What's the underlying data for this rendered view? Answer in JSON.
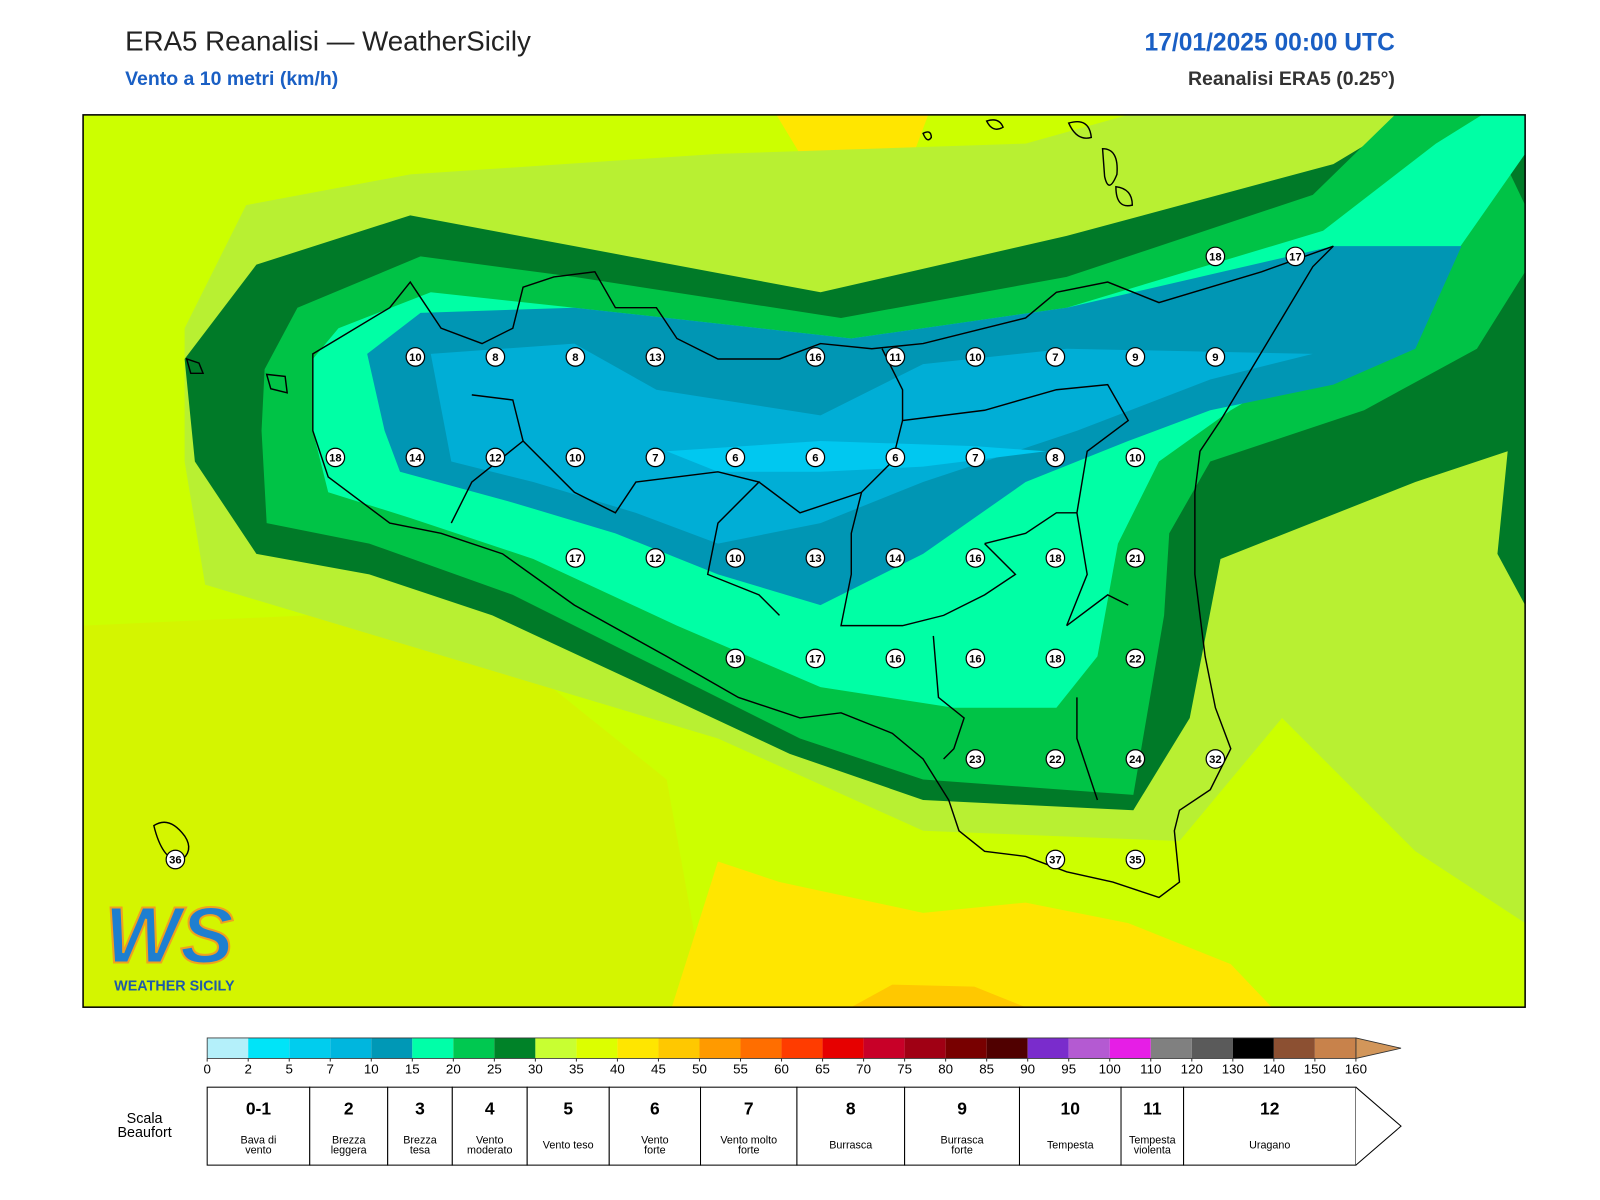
{
  "header": {
    "title": "ERA5 Reanalisi — WeatherSicily",
    "subtitle": "Vento a 10 metri (km/h)",
    "datetime": "17/01/2025 00:00 UTC",
    "source": "Reanalisi ERA5 (0.25°)"
  },
  "map": {
    "points": {
      "rows": [
        [
          null,
          null,
          null,
          null,
          null,
          null,
          null,
          null,
          null,
          null,
          null,
          null,
          null,
          18,
          17
        ],
        [
          null,
          null,
          null,
          10,
          8,
          8,
          13,
          null,
          16,
          11,
          10,
          7,
          9,
          9,
          null
        ],
        [
          null,
          null,
          18,
          14,
          12,
          10,
          7,
          6,
          6,
          6,
          7,
          8,
          10,
          null,
          null
        ],
        [
          null,
          null,
          null,
          null,
          null,
          17,
          12,
          10,
          13,
          14,
          16,
          18,
          21,
          null,
          null
        ],
        [
          null,
          null,
          null,
          null,
          null,
          null,
          null,
          19,
          17,
          16,
          16,
          18,
          22,
          null,
          null
        ],
        [
          null,
          null,
          null,
          null,
          null,
          null,
          null,
          null,
          null,
          null,
          23,
          22,
          24,
          32,
          null
        ],
        [
          36,
          null,
          null,
          null,
          null,
          null,
          null,
          null,
          null,
          null,
          null,
          37,
          35,
          null,
          null
        ]
      ]
    }
  },
  "legend": {
    "ticks": [
      0,
      2,
      5,
      7,
      10,
      15,
      20,
      25,
      30,
      35,
      40,
      45,
      50,
      55,
      60,
      65,
      70,
      75,
      80,
      85,
      90,
      95,
      100,
      110,
      120,
      130,
      140,
      150,
      160
    ],
    "colors": [
      "#b4f0fa",
      "#00e4f8",
      "#00cdee",
      "#00b6de",
      "#0098b6",
      "#00ffa8",
      "#00c850",
      "#008228",
      "#c8ff32",
      "#dcff00",
      "#ffe600",
      "#ffc800",
      "#ff9a00",
      "#ff6e00",
      "#ff3c00",
      "#e60000",
      "#c80028",
      "#a00014",
      "#780000",
      "#500000",
      "#7a2ccc",
      "#b45ad2",
      "#e61ee6",
      "#808080",
      "#5a5a5a",
      "#000000",
      "#8c5032",
      "#c8824b"
    ],
    "extend_color": "#d2965a"
  },
  "beaufort": {
    "label": [
      "Scala",
      "Beaufort"
    ],
    "scale": [
      {
        "force": "0-1",
        "description": [
          "Bava di",
          "vento"
        ]
      },
      {
        "force": 2,
        "description": [
          "Brezza",
          "leggera"
        ]
      },
      {
        "force": 3,
        "description": [
          "Brezza",
          "tesa"
        ]
      },
      {
        "force": 4,
        "description": [
          "Vento",
          "moderato"
        ]
      },
      {
        "force": 5,
        "description": [
          "Vento teso"
        ]
      },
      {
        "force": 6,
        "description": [
          "Vento",
          "forte"
        ]
      },
      {
        "force": 7,
        "description": [
          "Vento molto",
          "forte"
        ]
      },
      {
        "force": 8,
        "description": [
          "Burrasca"
        ]
      },
      {
        "force": 9,
        "description": [
          "Burrasca",
          "forte"
        ]
      },
      {
        "force": 10,
        "description": [
          "Tempesta"
        ]
      },
      {
        "force": 11,
        "description": [
          "Tempesta",
          "violenta"
        ]
      },
      {
        "force": 12,
        "description": [
          "Uragano"
        ]
      }
    ]
  },
  "logo": {
    "letters": "WS",
    "text": "WEATHER SICILY"
  }
}
